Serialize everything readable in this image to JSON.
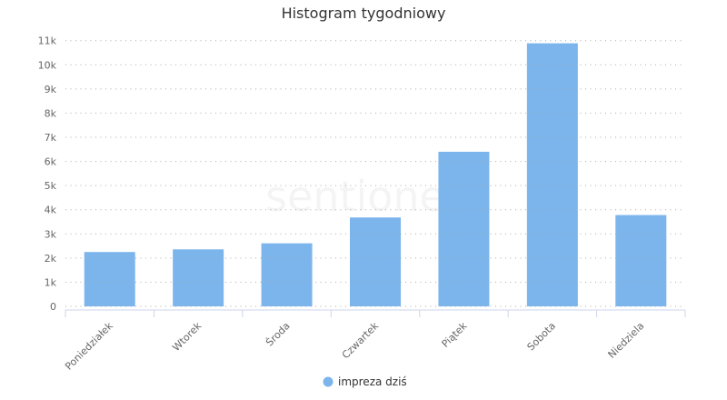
{
  "watermark": "sentione",
  "chart_data": {
    "type": "bar",
    "title": "Histogram tygodniowy",
    "xlabel": "",
    "ylabel": "",
    "categories": [
      "Poniedziałek",
      "Wtorek",
      "Środa",
      "Czwartek",
      "Piątek",
      "Sobota",
      "Niedziela"
    ],
    "series": [
      {
        "name": "impreza dziś",
        "color": "#7cb5ec",
        "values": [
          2250,
          2360,
          2610,
          3680,
          6400,
          10890,
          3780
        ]
      }
    ],
    "ylim": [
      0,
      11000
    ],
    "yticks": [
      0,
      1000,
      2000,
      3000,
      4000,
      5000,
      6000,
      7000,
      8000,
      9000,
      10000,
      11000
    ],
    "ytick_labels": [
      "0",
      "1k",
      "2k",
      "3k",
      "4k",
      "5k",
      "6k",
      "7k",
      "8k",
      "9k",
      "10k",
      "11k"
    ],
    "grid": true,
    "grid_style": "dotted",
    "legend_position": "bottom-center"
  }
}
